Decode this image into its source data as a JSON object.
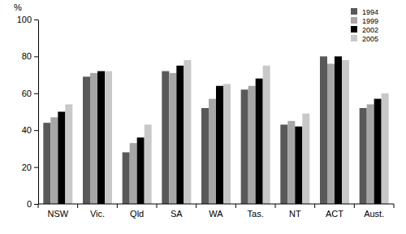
{
  "chart_data": {
    "type": "bar",
    "y_label": "%",
    "categories": [
      "NSW",
      "Vic.",
      "Qld",
      "SA",
      "WA",
      "Tas.",
      "NT",
      "ACT",
      "Aust."
    ],
    "series": [
      {
        "name": "1994",
        "color": "#595959",
        "values": [
          44,
          69,
          28,
          72,
          52,
          62,
          43,
          80,
          52
        ]
      },
      {
        "name": "1999",
        "color": "#a6a6a6",
        "values": [
          47,
          71,
          33,
          71,
          57,
          64,
          45,
          76,
          54
        ]
      },
      {
        "name": "2002",
        "color": "#000000",
        "values": [
          50,
          72,
          36,
          75,
          64,
          68,
          42,
          80,
          57
        ]
      },
      {
        "name": "2005",
        "color": "#c8c8c8",
        "values": [
          54,
          72,
          43,
          78,
          65,
          75,
          49,
          78,
          60
        ]
      }
    ],
    "ylim": [
      0,
      100
    ],
    "yticks": [
      0,
      20,
      40,
      60,
      80,
      100
    ],
    "grid": false,
    "legend": "upper right"
  }
}
